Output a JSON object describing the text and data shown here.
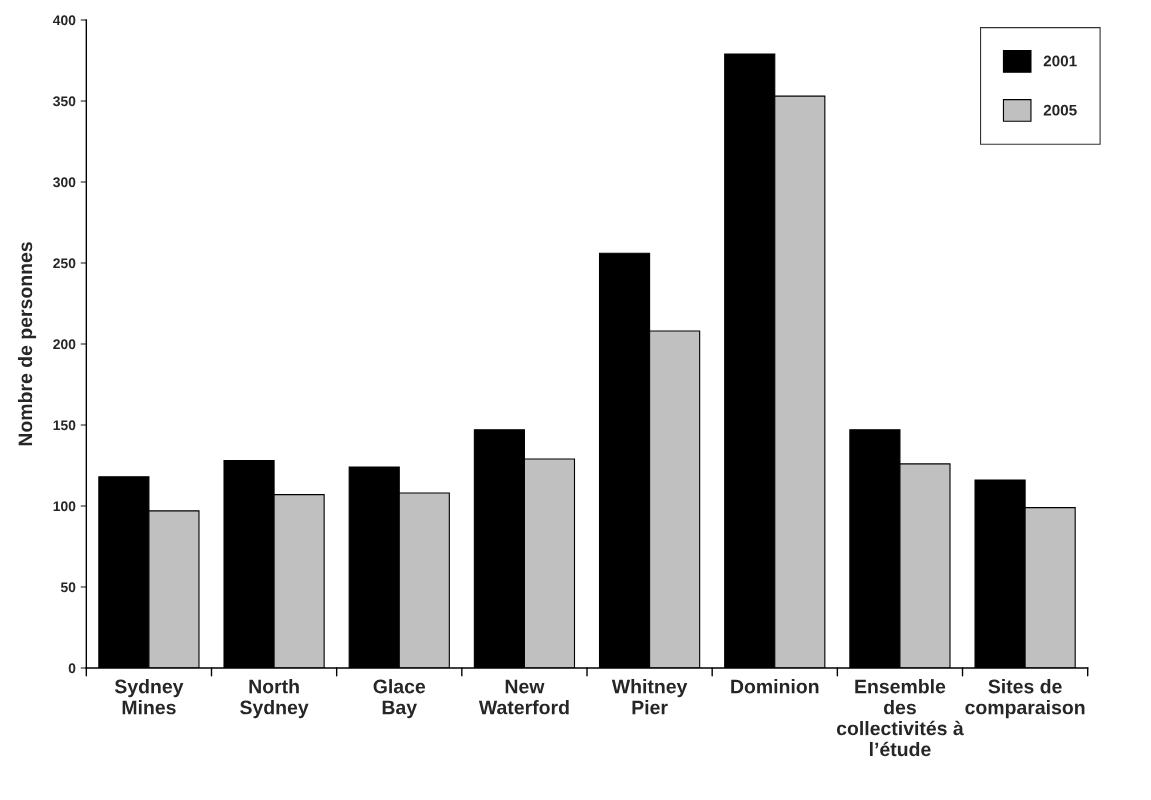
{
  "chart_data": {
    "type": "bar",
    "ylabel": "Nombre de personnes",
    "categories": [
      "Sydney\nMines",
      "North\nSydney",
      "Glace\nBay",
      "New\nWaterford",
      "Whitney\nPier",
      "Dominion",
      "Ensemble\ndes\ncollectivités à\nl’étude",
      "Sites de\ncomparaison"
    ],
    "series": [
      {
        "name": "2001",
        "color": "#000000",
        "values": [
          118,
          128,
          124,
          147,
          256,
          379,
          147,
          116
        ]
      },
      {
        "name": "2005",
        "color": "#c0c0c0",
        "values": [
          97,
          107,
          108,
          129,
          208,
          353,
          126,
          99
        ]
      }
    ],
    "ylim": [
      0,
      400
    ],
    "yticks": [
      0,
      50,
      100,
      150,
      200,
      250,
      300,
      350,
      400
    ],
    "grid": false,
    "legend": "top right"
  }
}
